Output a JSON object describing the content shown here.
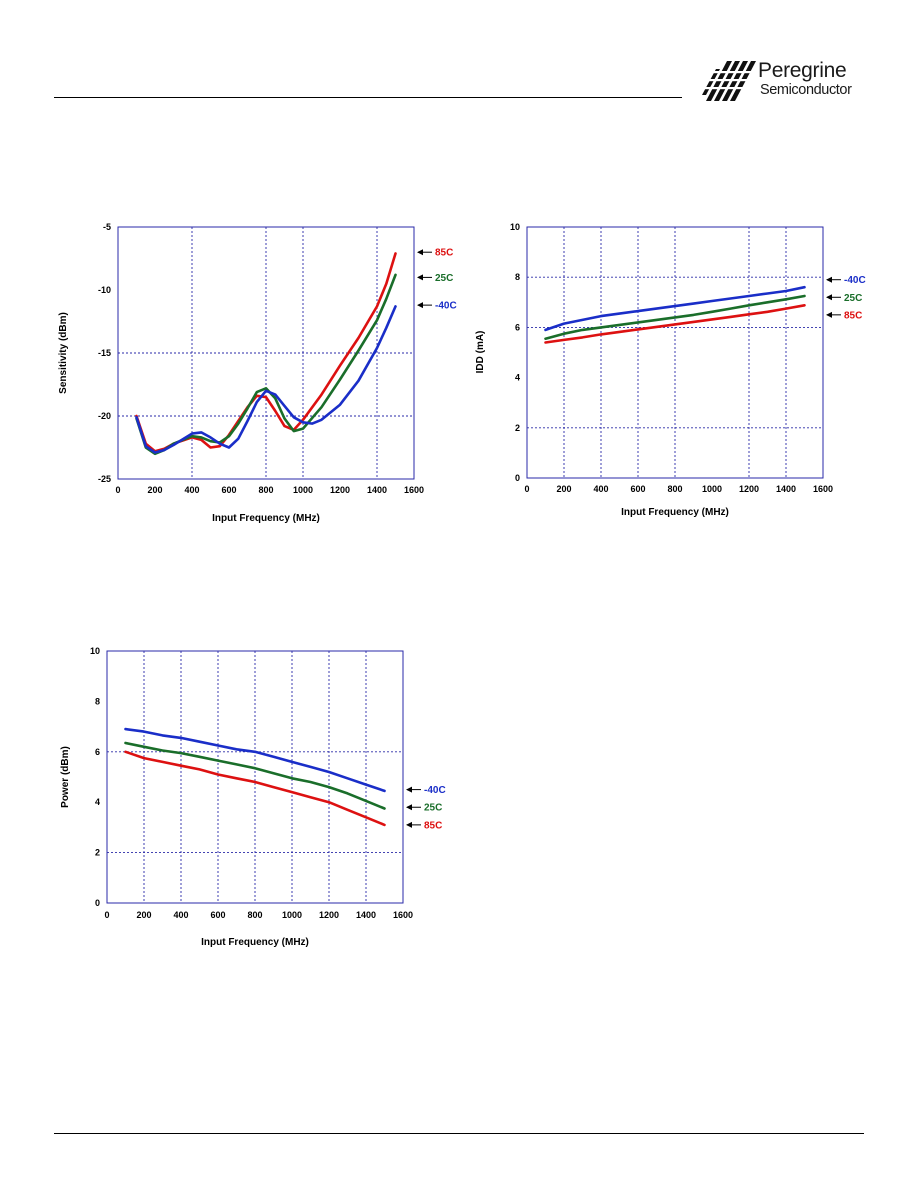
{
  "header": {
    "logo_name": "Peregrine",
    "logo_sub": "Semiconductor"
  },
  "chart_data": [
    {
      "type": "line",
      "xlabel": "Input  Frequency (MHz)",
      "ylabel": "Sensitivity (dBm)",
      "xlim": [
        0,
        1600
      ],
      "ylim": [
        -25,
        -5
      ],
      "xticks": [
        0,
        200,
        400,
        600,
        800,
        1000,
        1200,
        1400,
        1600
      ],
      "yticks": [
        -5,
        -10,
        -15,
        -20,
        -25
      ],
      "x_gridlines": [
        400,
        800,
        1000,
        1400
      ],
      "y_gridlines": [
        -15,
        -20
      ],
      "grid": true,
      "series": [
        {
          "name": "85C",
          "color": "#dd1111",
          "label_y": -7,
          "points": [
            [
              100,
              -20
            ],
            [
              150,
              -22.2
            ],
            [
              200,
              -22.8
            ],
            [
              250,
              -22.6
            ],
            [
              300,
              -22.2
            ],
            [
              400,
              -21.7
            ],
            [
              450,
              -21.9
            ],
            [
              500,
              -22.5
            ],
            [
              550,
              -22.4
            ],
            [
              600,
              -21.5
            ],
            [
              650,
              -20.4
            ],
            [
              700,
              -19.3
            ],
            [
              750,
              -18.4
            ],
            [
              800,
              -18.5
            ],
            [
              850,
              -19.6
            ],
            [
              900,
              -20.8
            ],
            [
              950,
              -21.1
            ],
            [
              1000,
              -20.3
            ],
            [
              1100,
              -18.3
            ],
            [
              1200,
              -16
            ],
            [
              1300,
              -13.8
            ],
            [
              1400,
              -11.3
            ],
            [
              1450,
              -9.5
            ],
            [
              1500,
              -7.1
            ]
          ]
        },
        {
          "name": "25C",
          "color": "#1a6e2a",
          "label_y": -9,
          "points": [
            [
              100,
              -20.2
            ],
            [
              150,
              -22.5
            ],
            [
              200,
              -23
            ],
            [
              250,
              -22.7
            ],
            [
              300,
              -22.2
            ],
            [
              400,
              -21.6
            ],
            [
              450,
              -21.7
            ],
            [
              500,
              -22
            ],
            [
              550,
              -22.1
            ],
            [
              600,
              -21.6
            ],
            [
              650,
              -20.6
            ],
            [
              700,
              -19.4
            ],
            [
              750,
              -18.1
            ],
            [
              800,
              -17.8
            ],
            [
              850,
              -18.6
            ],
            [
              900,
              -20.2
            ],
            [
              950,
              -21.2
            ],
            [
              1000,
              -21
            ],
            [
              1100,
              -19.3
            ],
            [
              1200,
              -17.1
            ],
            [
              1300,
              -14.8
            ],
            [
              1400,
              -12.4
            ],
            [
              1450,
              -10.7
            ],
            [
              1500,
              -8.8
            ]
          ]
        },
        {
          "name": "-40C",
          "color": "#1a2ec8",
          "label_y": -11.2,
          "points": [
            [
              100,
              -20.1
            ],
            [
              150,
              -22.4
            ],
            [
              200,
              -22.9
            ],
            [
              250,
              -22.7
            ],
            [
              300,
              -22.3
            ],
            [
              400,
              -21.4
            ],
            [
              450,
              -21.3
            ],
            [
              500,
              -21.7
            ],
            [
              550,
              -22.2
            ],
            [
              600,
              -22.5
            ],
            [
              650,
              -21.8
            ],
            [
              700,
              -20.4
            ],
            [
              750,
              -18.9
            ],
            [
              800,
              -18
            ],
            [
              850,
              -18.3
            ],
            [
              900,
              -19.2
            ],
            [
              950,
              -20.1
            ],
            [
              1000,
              -20.5
            ],
            [
              1050,
              -20.6
            ],
            [
              1100,
              -20.3
            ],
            [
              1200,
              -19.1
            ],
            [
              1300,
              -17.2
            ],
            [
              1400,
              -14.6
            ],
            [
              1450,
              -13
            ],
            [
              1500,
              -11.3
            ]
          ]
        }
      ]
    },
    {
      "type": "line",
      "xlabel": "Input  Frequency (MHz)",
      "ylabel": "IDD (mA)",
      "xlim": [
        0,
        1600
      ],
      "ylim": [
        0,
        10
      ],
      "xticks": [
        0,
        200,
        400,
        600,
        800,
        1000,
        1200,
        1400,
        1600
      ],
      "yticks": [
        0,
        2,
        4,
        6,
        8,
        10
      ],
      "x_gridlines": [
        200,
        400,
        600,
        800,
        1200,
        1400
      ],
      "y_gridlines": [
        2,
        6,
        8
      ],
      "grid": true,
      "series": [
        {
          "name": "-40C",
          "color": "#1a2ec8",
          "label_y": 7.9,
          "points": [
            [
              100,
              5.9
            ],
            [
              200,
              6.15
            ],
            [
              300,
              6.3
            ],
            [
              400,
              6.45
            ],
            [
              500,
              6.55
            ],
            [
              600,
              6.65
            ],
            [
              700,
              6.75
            ],
            [
              800,
              6.85
            ],
            [
              900,
              6.95
            ],
            [
              1000,
              7.05
            ],
            [
              1100,
              7.15
            ],
            [
              1200,
              7.25
            ],
            [
              1300,
              7.35
            ],
            [
              1400,
              7.45
            ],
            [
              1500,
              7.6
            ]
          ]
        },
        {
          "name": "25C",
          "color": "#1a6e2a",
          "label_y": 7.2,
          "points": [
            [
              100,
              5.55
            ],
            [
              200,
              5.75
            ],
            [
              300,
              5.9
            ],
            [
              400,
              6.0
            ],
            [
              500,
              6.1
            ],
            [
              600,
              6.2
            ],
            [
              700,
              6.3
            ],
            [
              800,
              6.4
            ],
            [
              900,
              6.5
            ],
            [
              1000,
              6.62
            ],
            [
              1100,
              6.75
            ],
            [
              1200,
              6.88
            ],
            [
              1300,
              7.0
            ],
            [
              1400,
              7.12
            ],
            [
              1500,
              7.25
            ]
          ]
        },
        {
          "name": "85C",
          "color": "#dd1111",
          "label_y": 6.5,
          "points": [
            [
              100,
              5.4
            ],
            [
              200,
              5.5
            ],
            [
              300,
              5.6
            ],
            [
              400,
              5.72
            ],
            [
              500,
              5.82
            ],
            [
              600,
              5.92
            ],
            [
              700,
              6.02
            ],
            [
              800,
              6.12
            ],
            [
              900,
              6.22
            ],
            [
              1000,
              6.32
            ],
            [
              1100,
              6.42
            ],
            [
              1200,
              6.52
            ],
            [
              1300,
              6.62
            ],
            [
              1400,
              6.75
            ],
            [
              1500,
              6.88
            ]
          ]
        }
      ]
    },
    {
      "type": "line",
      "xlabel": "Input  Frequency (MHz)",
      "ylabel": "Power (dBm)",
      "xlim": [
        0,
        1600
      ],
      "ylim": [
        0,
        10
      ],
      "xticks": [
        0,
        200,
        400,
        600,
        800,
        1000,
        1200,
        1400,
        1600
      ],
      "yticks": [
        0,
        2,
        4,
        6,
        8,
        10
      ],
      "x_gridlines": [
        200,
        400,
        600,
        800,
        1000,
        1200,
        1400
      ],
      "y_gridlines": [
        2,
        6
      ],
      "grid": true,
      "series": [
        {
          "name": "-40C",
          "color": "#1a2ec8",
          "label_y": 4.5,
          "points": [
            [
              100,
              6.9
            ],
            [
              200,
              6.8
            ],
            [
              300,
              6.65
            ],
            [
              400,
              6.55
            ],
            [
              500,
              6.4
            ],
            [
              600,
              6.25
            ],
            [
              700,
              6.1
            ],
            [
              800,
              6.0
            ],
            [
              900,
              5.8
            ],
            [
              1000,
              5.6
            ],
            [
              1100,
              5.4
            ],
            [
              1200,
              5.2
            ],
            [
              1300,
              4.95
            ],
            [
              1400,
              4.7
            ],
            [
              1500,
              4.45
            ]
          ]
        },
        {
          "name": "25C",
          "color": "#1a6e2a",
          "label_y": 3.8,
          "points": [
            [
              100,
              6.35
            ],
            [
              200,
              6.2
            ],
            [
              300,
              6.05
            ],
            [
              400,
              5.95
            ],
            [
              500,
              5.8
            ],
            [
              600,
              5.65
            ],
            [
              700,
              5.5
            ],
            [
              800,
              5.35
            ],
            [
              900,
              5.15
            ],
            [
              1000,
              4.95
            ],
            [
              1100,
              4.8
            ],
            [
              1200,
              4.6
            ],
            [
              1300,
              4.35
            ],
            [
              1400,
              4.05
            ],
            [
              1500,
              3.75
            ]
          ]
        },
        {
          "name": "85C",
          "color": "#dd1111",
          "label_y": 3.1,
          "points": [
            [
              100,
              6.0
            ],
            [
              200,
              5.75
            ],
            [
              300,
              5.6
            ],
            [
              400,
              5.45
            ],
            [
              500,
              5.3
            ],
            [
              600,
              5.1
            ],
            [
              700,
              4.95
            ],
            [
              800,
              4.8
            ],
            [
              900,
              4.6
            ],
            [
              1000,
              4.4
            ],
            [
              1100,
              4.2
            ],
            [
              1200,
              4.0
            ],
            [
              1300,
              3.7
            ],
            [
              1400,
              3.4
            ],
            [
              1500,
              3.1
            ]
          ]
        }
      ]
    }
  ]
}
